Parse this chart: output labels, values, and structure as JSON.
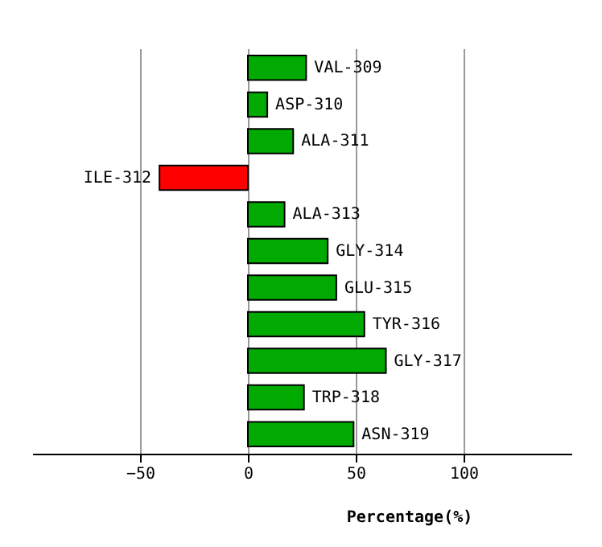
{
  "chart_data": {
    "type": "bar",
    "orientation": "horizontal",
    "xlabel": "Percentage(%)",
    "categories": [
      "VAL-309",
      "ASP-310",
      "ALA-311",
      "ILE-312",
      "ALA-313",
      "GLY-314",
      "GLU-315",
      "TYR-316",
      "GLY-317",
      "TRP-318",
      "ASN-319"
    ],
    "values": [
      27,
      9,
      21,
      -41,
      17,
      37,
      41,
      54,
      64,
      26,
      49
    ],
    "colors": [
      "#00aa00",
      "#00aa00",
      "#00aa00",
      "#ff0000",
      "#00aa00",
      "#00aa00",
      "#00aa00",
      "#00aa00",
      "#00aa00",
      "#00aa00",
      "#00aa00"
    ],
    "xlim": [
      -100,
      150
    ],
    "xticks": [
      -50,
      0,
      50,
      100
    ],
    "grid": "x",
    "tick_labels": "x"
  }
}
